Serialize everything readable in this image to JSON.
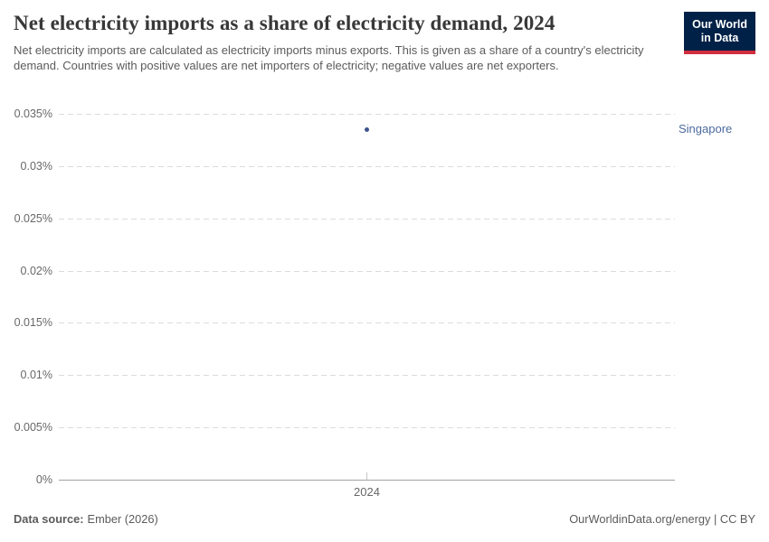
{
  "header": {
    "title": "Net electricity imports as a share of electricity demand, 2024",
    "subtitle": "Net electricity imports are calculated as electricity imports minus exports. This is given as a share of a country's electricity demand. Countries with positive values are net importers of electricity; negative values are net exporters."
  },
  "logo": {
    "line1": "Our World",
    "line2": "in Data",
    "bg_color": "#002147",
    "accent_color": "#d12d3e"
  },
  "chart_data": {
    "type": "scatter",
    "title": "Net electricity imports as a share of electricity demand, 2024",
    "xlabel": "",
    "ylabel": "",
    "unit": "%",
    "ylim": [
      0,
      0.035
    ],
    "grid": "horizontal-dashed",
    "legend_position": "right-entity-label",
    "x": [
      2024
    ],
    "series": [
      {
        "name": "Singapore",
        "values": [
          0.0335
        ],
        "color": "#3d548c",
        "label_color": "#4c6a9c"
      }
    ],
    "yticks": [
      {
        "value": 0,
        "label": "0%"
      },
      {
        "value": 0.005,
        "label": "0.005%"
      },
      {
        "value": 0.01,
        "label": "0.01%"
      },
      {
        "value": 0.015,
        "label": "0.015%"
      },
      {
        "value": 0.02,
        "label": "0.02%"
      },
      {
        "value": 0.025,
        "label": "0.025%"
      },
      {
        "value": 0.03,
        "label": "0.03%"
      },
      {
        "value": 0.035,
        "label": "0.035%"
      }
    ],
    "xticks": [
      {
        "value": 2024,
        "label": "2024"
      }
    ]
  },
  "footer": {
    "datasource_label": "Data source:",
    "datasource_value": "Ember (2026)",
    "rights": "OurWorldinData.org/energy | CC BY"
  }
}
